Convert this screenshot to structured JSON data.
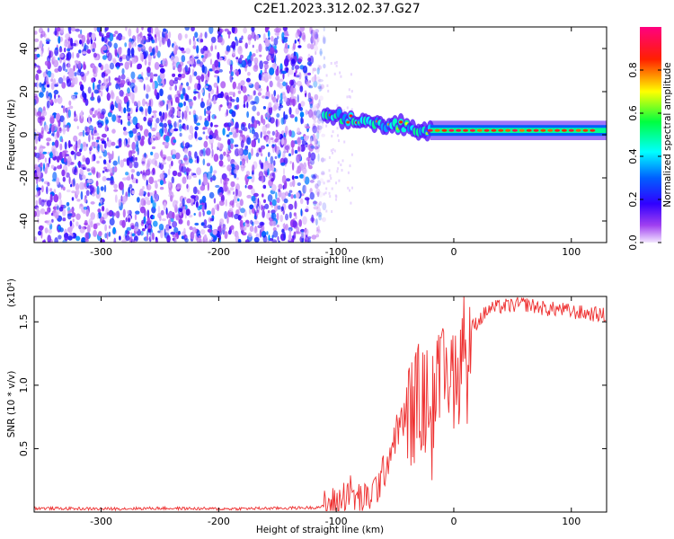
{
  "title": "C2E1.2023.312.02.37.G27",
  "chart_data": [
    {
      "type": "heatmap",
      "xlabel": "Height of straight line (km)",
      "ylabel": "Frequency (Hz)",
      "xlim": [
        -357,
        130
      ],
      "ylim": [
        -50,
        50
      ],
      "x_ticks": [
        -300,
        -200,
        -100,
        0,
        100
      ],
      "y_ticks": [
        -40,
        -20,
        0,
        20,
        40
      ],
      "grid": false,
      "colorbar": {
        "label": "Normalized spectral amplitude",
        "range": [
          0,
          1
        ],
        "ticks": [
          "0.0",
          "0.2",
          "0.4",
          "0.6",
          "0.8"
        ],
        "colors": [
          "#f2e6ff",
          "#8a2be2",
          "#0000ff",
          "#00ffff",
          "#00ff00",
          "#ffff00",
          "#ff0000",
          "#ff0080"
        ]
      },
      "regions": [
        {
          "x_range": [
            -357,
            -110
          ],
          "freq_range": [
            -50,
            50
          ],
          "description": "broadband scattered noise",
          "amplitude": [
            0.0,
            0.3
          ]
        },
        {
          "x_range": [
            -110,
            -20
          ],
          "freq_center_start": 9,
          "freq_center_end": 2,
          "amplitude": [
            0.3,
            0.9
          ]
        },
        {
          "x_range": [
            -20,
            130
          ],
          "freq_center": 2,
          "amplitude": [
            0.5,
            1.0
          ]
        }
      ]
    },
    {
      "type": "line",
      "xlabel": "Height of straight line (km)",
      "ylabel": "SNR (10 * v/v)",
      "y_multiplier": "(x10⁴)",
      "xlim": [
        -357,
        130
      ],
      "ylim": [
        0,
        1.7
      ],
      "x_ticks": [
        -300,
        -200,
        -100,
        0,
        100
      ],
      "y_ticks": [
        "0.5",
        "1.0",
        "1.5"
      ],
      "y_tick_values": [
        0.5,
        1.0,
        1.5
      ],
      "grid": false,
      "color": "#ee3030",
      "series": [
        {
          "x": [
            -357,
            -300,
            -250,
            -200,
            -150,
            -120,
            -105,
            -100,
            -95,
            -90,
            -85,
            -80,
            -75,
            -70,
            -65,
            -60,
            -55,
            -50,
            -45,
            -40,
            -35,
            -30,
            -25,
            -20,
            -15,
            -10,
            -5,
            0,
            5,
            10,
            15,
            20,
            25,
            30,
            40,
            50,
            60,
            70,
            80,
            90,
            100,
            110,
            120,
            130
          ],
          "y": [
            0.03,
            0.025,
            0.03,
            0.025,
            0.03,
            0.035,
            0.05,
            0.06,
            0.1,
            0.18,
            0.12,
            0.1,
            0.08,
            0.15,
            0.2,
            0.3,
            0.45,
            0.6,
            0.7,
            0.75,
            0.8,
            0.9,
            0.85,
            0.9,
            0.95,
            1.0,
            1.05,
            1.1,
            1.25,
            1.35,
            1.45,
            1.5,
            1.55,
            1.6,
            1.62,
            1.63,
            1.64,
            1.62,
            1.6,
            1.6,
            1.58,
            1.57,
            1.56,
            1.55
          ]
        }
      ]
    }
  ]
}
